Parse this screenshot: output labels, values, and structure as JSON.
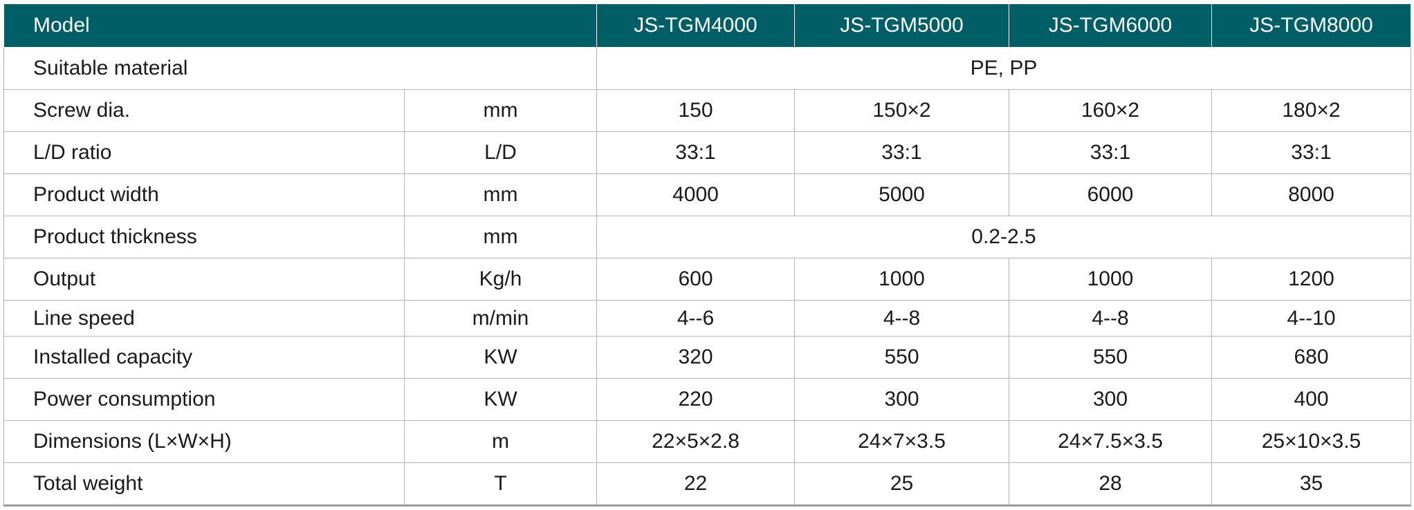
{
  "header": {
    "model": "Model",
    "models": [
      "JS-TGM4000",
      "JS-TGM5000",
      "JS-TGM6000",
      "JS-TGM8000"
    ]
  },
  "rows": [
    {
      "label": "Suitable material",
      "values": [
        "PE, PP"
      ]
    },
    {
      "label": "Screw dia.",
      "unit": "mm",
      "values": [
        "150",
        "150×2",
        "160×2",
        "180×2"
      ]
    },
    {
      "label": "L/D ratio",
      "unit": "L/D",
      "values": [
        "33:1",
        "33:1",
        "33:1",
        "33:1"
      ]
    },
    {
      "label": "Product width",
      "unit": "mm",
      "values": [
        "4000",
        "5000",
        "6000",
        "8000"
      ]
    },
    {
      "label": "Product thickness",
      "unit": "mm",
      "values": [
        "0.2-2.5"
      ]
    },
    {
      "label": "Output",
      "unit": "Kg/h",
      "values": [
        "600",
        "1000",
        "1000",
        "1200"
      ]
    },
    {
      "label": "Line speed",
      "unit": "m/min",
      "values": [
        "4--6",
        "4--8",
        "4--8",
        "4--10"
      ]
    },
    {
      "label": "Installed capacity",
      "unit": "KW",
      "values": [
        "320",
        "550",
        "550",
        "680"
      ]
    },
    {
      "label": "Power consumption",
      "unit": "KW",
      "values": [
        "220",
        "300",
        "300",
        "400"
      ]
    },
    {
      "label": "Dimensions (L×W×H)",
      "unit": "m",
      "values": [
        "22×5×2.8",
        "24×7×3.5",
        "24×7.5×3.5",
        "25×10×3.5"
      ]
    },
    {
      "label": "Total weight",
      "unit": "T",
      "values": [
        "22",
        "25",
        "28",
        "35"
      ]
    }
  ]
}
